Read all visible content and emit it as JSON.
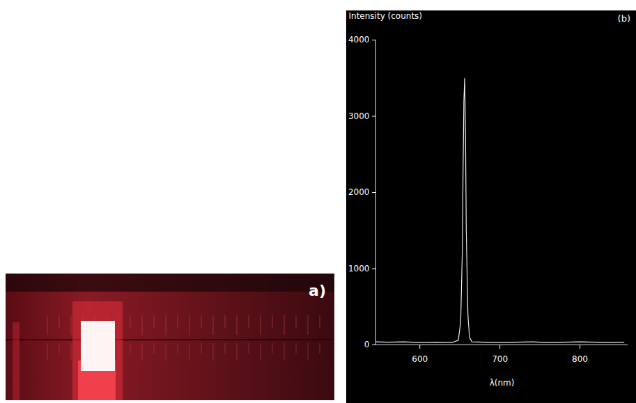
{
  "chart_data": [
    {
      "type": "image",
      "title": "a)"
    },
    {
      "type": "line",
      "title": "(b)",
      "x_label": "λ(nm)",
      "y_label": "Intensity (counts)",
      "x": [
        545,
        560,
        580,
        600,
        620,
        640,
        648,
        651,
        653,
        654,
        655,
        656,
        657,
        658,
        660,
        662,
        665,
        680,
        700,
        720,
        740,
        760,
        780,
        800,
        820,
        840,
        855
      ],
      "values": [
        40,
        35,
        40,
        30,
        35,
        30,
        60,
        300,
        1200,
        2300,
        3200,
        3500,
        2800,
        1500,
        400,
        100,
        40,
        35,
        30,
        35,
        40,
        30,
        35,
        40,
        35,
        30,
        35
      ],
      "color": "#e8e8e8",
      "xlim": [
        545,
        860
      ],
      "ylim": [
        0,
        4000
      ],
      "xticks": [
        600,
        700,
        800
      ],
      "yticks": [
        0,
        1000,
        2000,
        3000,
        4000
      ],
      "grid": false
    }
  ]
}
